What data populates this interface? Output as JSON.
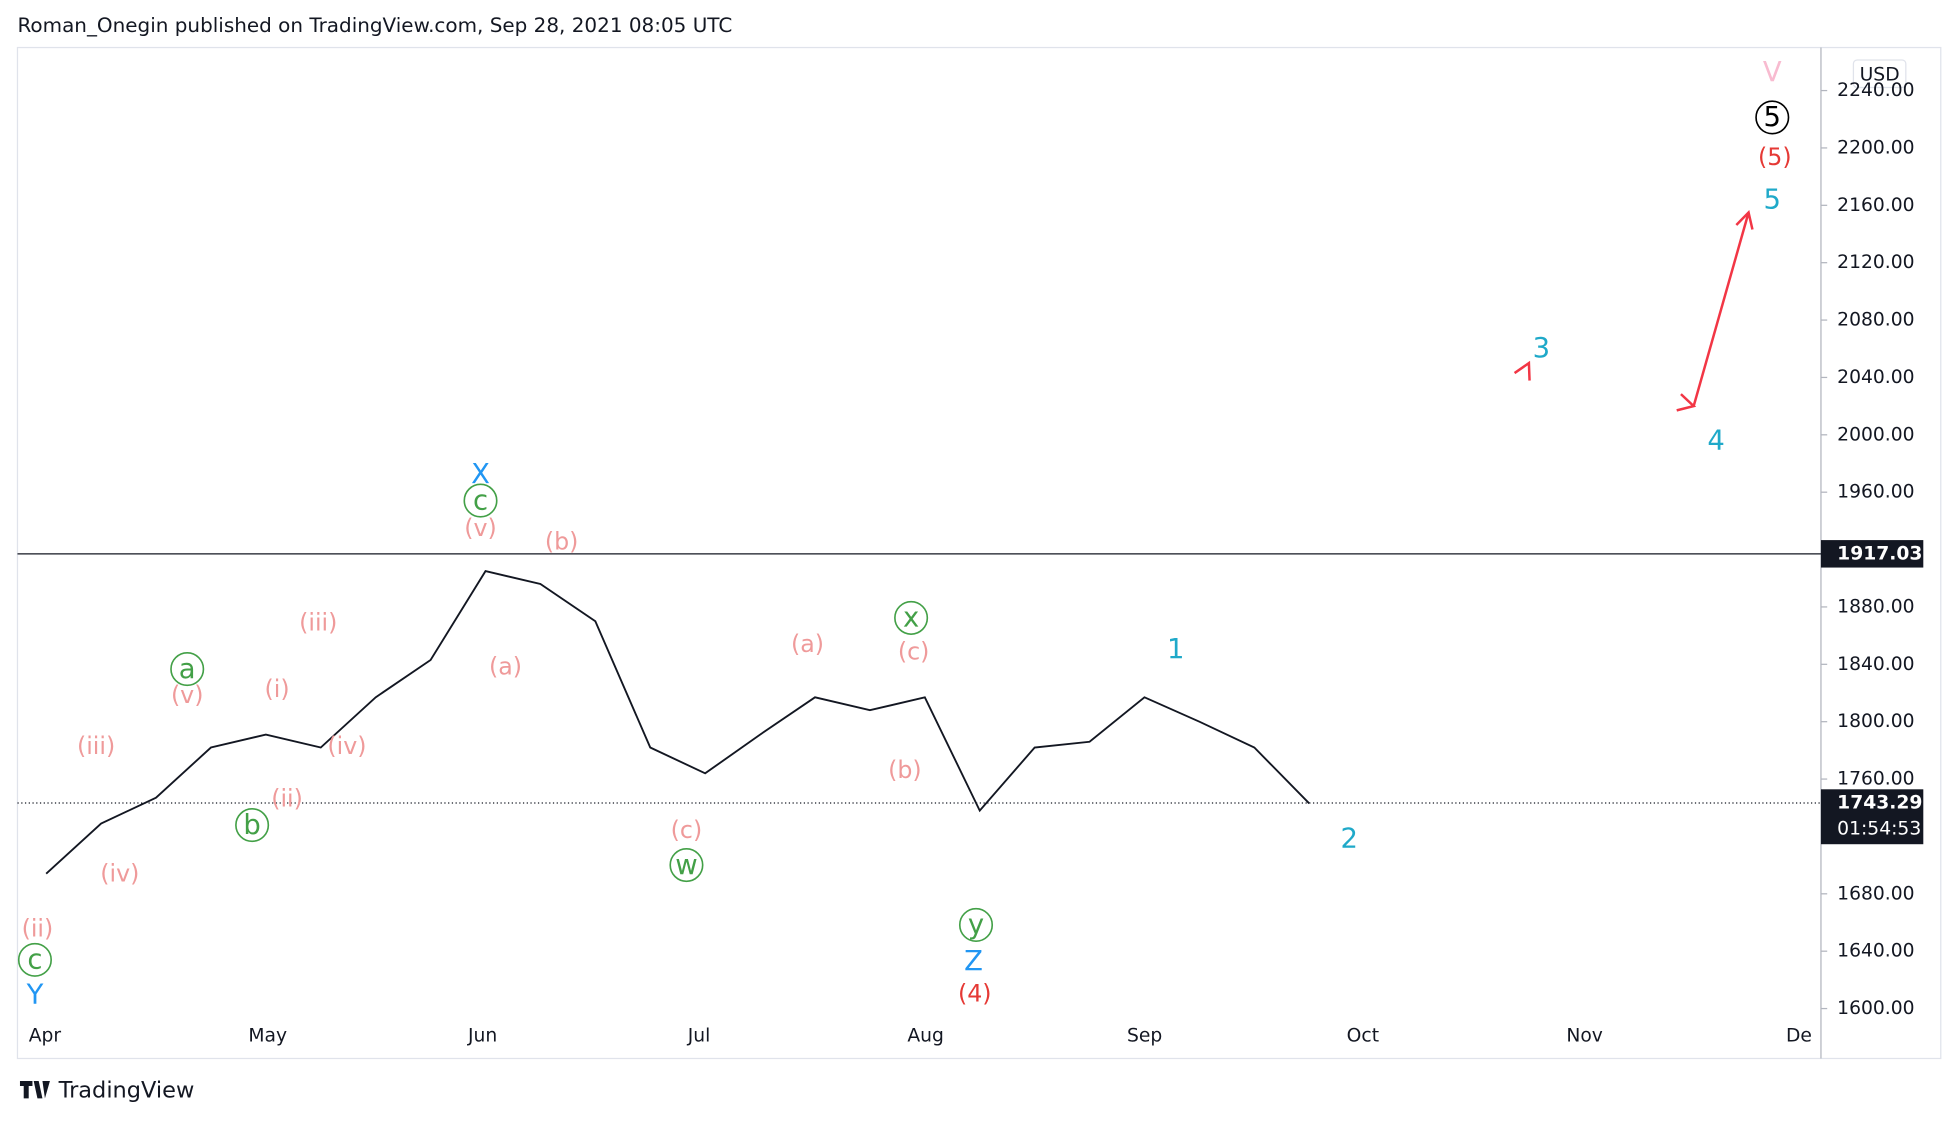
{
  "header": "Roman_Onegin published on TradingView.com, Sep 28, 2021 08:05 UTC",
  "footer": "TradingView",
  "chart_data": {
    "type": "line",
    "currency": "USD",
    "categories": [
      "Apr",
      null,
      null,
      null,
      "May",
      null,
      null,
      null,
      "Jun",
      null,
      null,
      null,
      "Jul",
      null,
      null,
      null,
      "Aug",
      null,
      null,
      null,
      "Sep",
      null,
      null,
      null,
      "Oct",
      null,
      null,
      null,
      "Nov",
      null,
      null,
      null,
      "De",
      null,
      null,
      null
    ],
    "series": [
      {
        "name": "Price",
        "color": "#131722",
        "values": [
          1694,
          1729,
          1747,
          1782,
          1791,
          1782,
          1817,
          1843,
          1905,
          1896,
          1870,
          1782,
          1764,
          1791,
          1817,
          1808,
          1817,
          1738,
          1782,
          1786,
          1817,
          1800,
          1782,
          1743,
          null,
          null,
          null,
          null,
          null,
          null,
          null,
          null,
          null,
          null,
          null,
          null
        ]
      },
      {
        "name": "Forecast",
        "color": "#f23645",
        "values": [
          null,
          null,
          null,
          null,
          null,
          null,
          null,
          null,
          null,
          null,
          null,
          null,
          null,
          null,
          null,
          null,
          null,
          null,
          null,
          null,
          null,
          null,
          null,
          1743,
          null,
          null,
          null,
          2050,
          null,
          null,
          2020,
          2155,
          null,
          null,
          null,
          null
        ]
      }
    ],
    "ylim": [
      1600,
      2270
    ],
    "yticks": [
      {
        "value": 1600,
        "label": "1600.00"
      },
      {
        "value": 1640,
        "label": "1640.00"
      },
      {
        "value": 1680,
        "label": "1680.00"
      },
      {
        "value": 1720,
        "label": "1720.00"
      },
      {
        "value": 1760,
        "label": "1760.00"
      },
      {
        "value": 1800,
        "label": "1800.00"
      },
      {
        "value": 1840,
        "label": "1840.00"
      },
      {
        "value": 1880,
        "label": "1880.00"
      },
      {
        "value": 1920,
        "label": "1920.00"
      },
      {
        "value": 1960,
        "label": "1960.00"
      },
      {
        "value": 2000,
        "label": "2000.00"
      },
      {
        "value": 2040,
        "label": "2040.00"
      },
      {
        "value": 2080,
        "label": "2080.00"
      },
      {
        "value": 2120,
        "label": "2120.00"
      },
      {
        "value": 2160,
        "label": "2160.00"
      },
      {
        "value": 2200,
        "label": "2200.00"
      },
      {
        "value": 2240,
        "label": "2240.00"
      }
    ],
    "hline": {
      "value": 1917.03,
      "label": "1917.03"
    },
    "last_price": {
      "value": 1743.29,
      "label": "1743.29",
      "countdown": "01:54:53"
    },
    "annotations": [
      {
        "text": "X",
        "color": "#2196f3",
        "circled": false
      },
      {
        "text": "c",
        "color": "#43a047",
        "circled": true
      },
      {
        "text": "(v)",
        "color": "#ef9a9a",
        "circled": false
      },
      {
        "text": "(b)",
        "color": "#ef9a9a",
        "circled": false
      },
      {
        "text": "(a)",
        "color": "#ef9a9a",
        "circled": false
      },
      {
        "text": "(iii)",
        "color": "#ef9a9a",
        "circled": false
      },
      {
        "text": "a",
        "color": "#43a047",
        "circled": true
      },
      {
        "text": "(v)",
        "color": "#ef9a9a",
        "circled": false
      },
      {
        "text": "(i)",
        "color": "#ef9a9a",
        "circled": false
      },
      {
        "text": "(iv)",
        "color": "#ef9a9a",
        "circled": false
      },
      {
        "text": "(ii)",
        "color": "#ef9a9a",
        "circled": false
      },
      {
        "text": "b",
        "color": "#43a047",
        "circled": true
      },
      {
        "text": "(iii)",
        "color": "#ef9a9a",
        "circled": false
      },
      {
        "text": "(iv)",
        "color": "#ef9a9a",
        "circled": false
      },
      {
        "text": "(ii)",
        "color": "#ef9a9a",
        "circled": false
      },
      {
        "text": "c",
        "color": "#43a047",
        "circled": true
      },
      {
        "text": "Y",
        "color": "#2196f3",
        "circled": false
      },
      {
        "text": "(c)",
        "color": "#ef9a9a",
        "circled": false
      },
      {
        "text": "w",
        "color": "#43a047",
        "circled": true
      },
      {
        "text": "(a)",
        "color": "#ef9a9a",
        "circled": false
      },
      {
        "text": "x",
        "color": "#43a047",
        "circled": true
      },
      {
        "text": "(c)",
        "color": "#ef9a9a",
        "circled": false
      },
      {
        "text": "(b)",
        "color": "#ef9a9a",
        "circled": false
      },
      {
        "text": "y",
        "color": "#43a047",
        "circled": true
      },
      {
        "text": "Z",
        "color": "#2196f3",
        "circled": false
      },
      {
        "text": "(4)",
        "color": "#e53935",
        "circled": false
      },
      {
        "text": "1",
        "color": "#1fa9c9",
        "circled": false
      },
      {
        "text": "2",
        "color": "#1fa9c9",
        "circled": false
      },
      {
        "text": "3",
        "color": "#1fa9c9",
        "circled": false
      },
      {
        "text": "4",
        "color": "#1fa9c9",
        "circled": false
      },
      {
        "text": "5",
        "color": "#1fa9c9",
        "circled": false
      },
      {
        "text": "(5)",
        "color": "#e53935",
        "circled": false
      },
      {
        "text": "5",
        "color": "#000000",
        "circled": true
      },
      {
        "text": "V",
        "color": "#f8bbd0",
        "circled": false
      }
    ]
  }
}
